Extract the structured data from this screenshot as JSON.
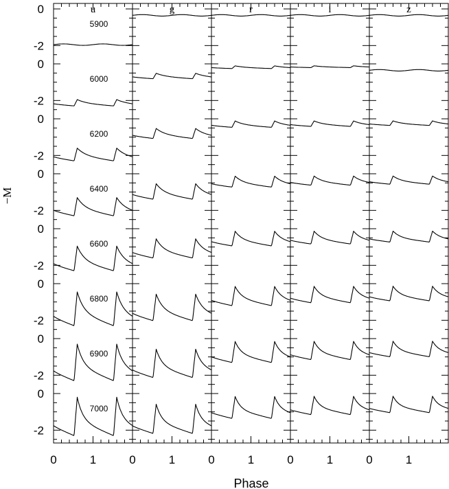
{
  "chart_data": {
    "type": "line",
    "ylabel": "−M",
    "xlabel": "Phase",
    "panels": [
      "u",
      "g",
      "r",
      "i",
      "z"
    ],
    "temperatures": [
      "5900",
      "6000",
      "6200",
      "6400",
      "6600",
      "6800",
      "6900",
      "7000"
    ],
    "x_tick_labels": [
      "0",
      "1"
    ],
    "y_tick_labels": [
      "0",
      "-2"
    ],
    "xlim": [
      0,
      2
    ],
    "ylim_per_row": [
      -2.7,
      0.3
    ],
    "amplitudes_mag": [
      [
        0.05,
        0.05,
        0.03,
        0.02,
        0.02
      ],
      [
        0.35,
        0.3,
        0.15,
        0.1,
        0.08
      ],
      [
        0.7,
        0.55,
        0.35,
        0.3,
        0.25
      ],
      [
        1.0,
        0.85,
        0.6,
        0.5,
        0.45
      ],
      [
        1.35,
        1.05,
        0.8,
        0.7,
        0.6
      ],
      [
        1.85,
        1.45,
        1.05,
        0.9,
        0.8
      ],
      [
        2.0,
        1.55,
        1.15,
        1.0,
        0.85
      ],
      [
        2.1,
        1.6,
        1.2,
        1.0,
        0.9
      ]
    ]
  }
}
